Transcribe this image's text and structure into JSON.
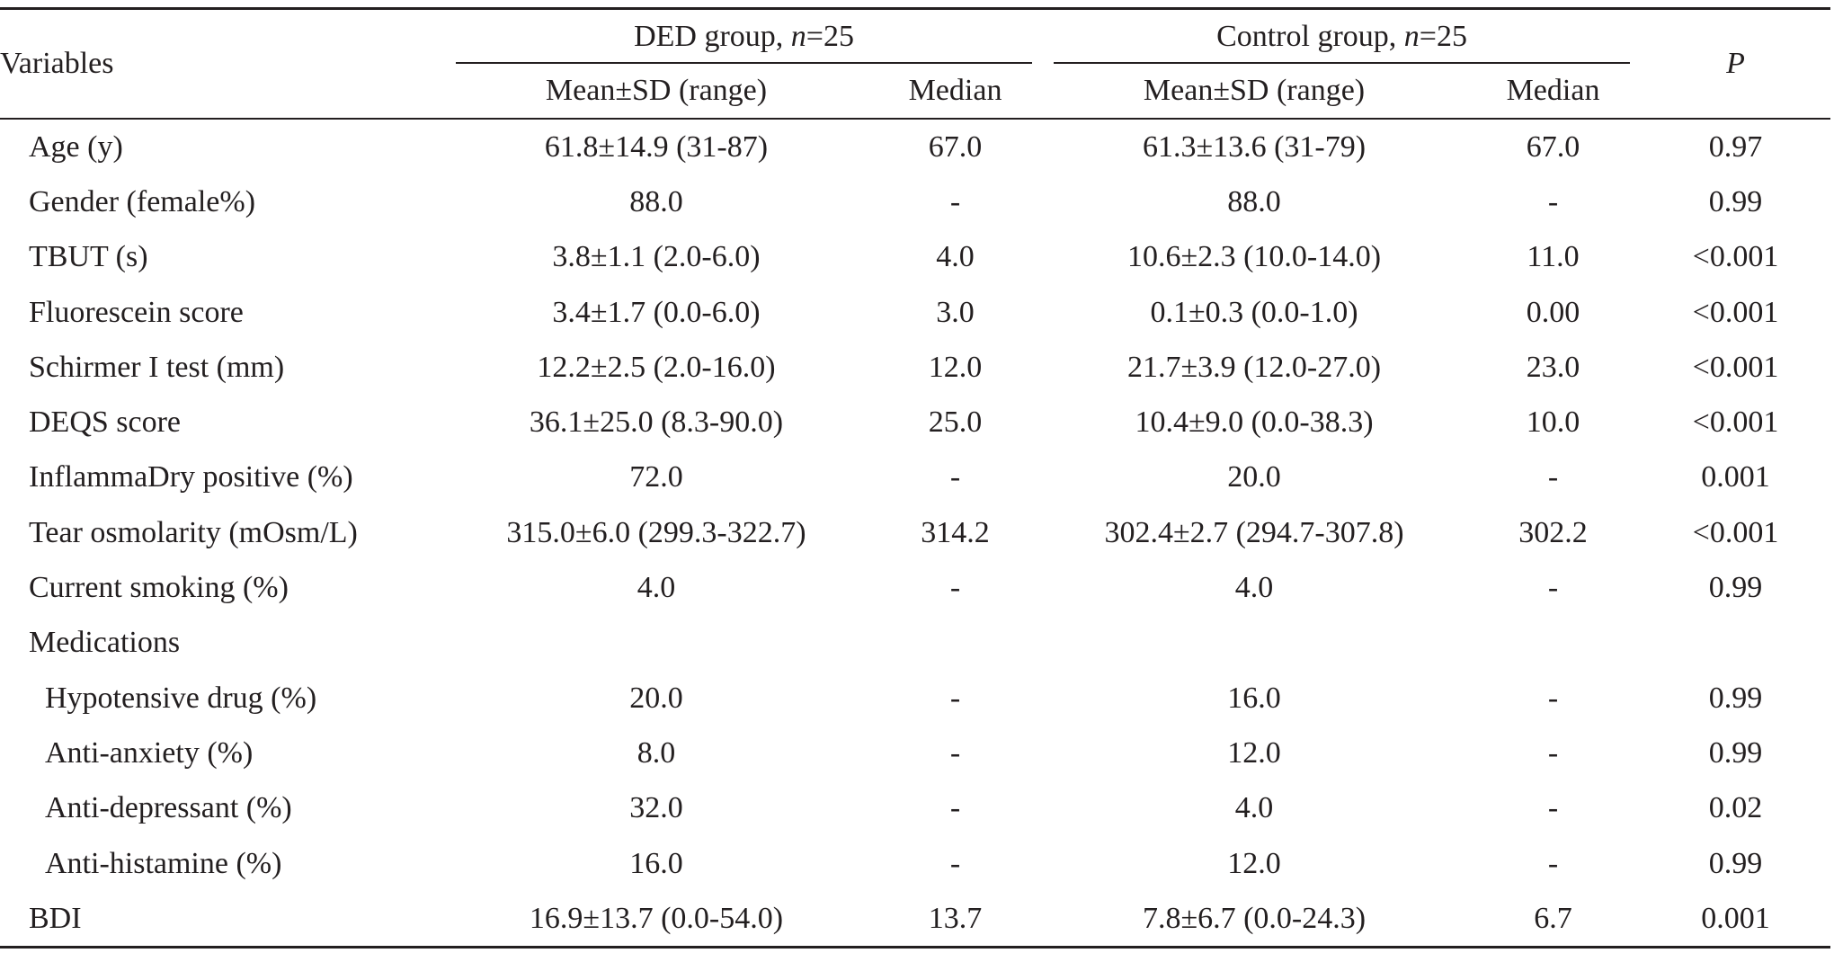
{
  "table": {
    "header": {
      "variables": "Variables",
      "ded_group_prefix": "DED group, ",
      "ded_group_n": "n",
      "ded_group_suffix": "=25",
      "control_group_prefix": "Control group, ",
      "control_group_n": "n",
      "control_group_suffix": "=25",
      "p": "P",
      "mean_sd_range": "Mean±SD (range)",
      "median": "Median"
    },
    "rows": [
      {
        "label": "Age (y)",
        "ded_mean": "61.8±14.9 (31-87)",
        "ded_median": "67.0",
        "ctl_mean": "61.3±13.6 (31-79)",
        "ctl_median": "67.0",
        "p": "0.97"
      },
      {
        "label": "Gender (female%)",
        "ded_mean": "88.0",
        "ded_median": "-",
        "ctl_mean": "88.0",
        "ctl_median": "-",
        "p": "0.99"
      },
      {
        "label": "TBUT (s)",
        "ded_mean": "3.8±1.1 (2.0-6.0)",
        "ded_median": "4.0",
        "ctl_mean": "10.6±2.3 (10.0-14.0)",
        "ctl_median": "11.0",
        "p": "<0.001"
      },
      {
        "label": "Fluorescein score",
        "ded_mean": "3.4±1.7 (0.0-6.0)",
        "ded_median": "3.0",
        "ctl_mean": "0.1±0.3 (0.0-1.0)",
        "ctl_median": "0.00",
        "p": "<0.001"
      },
      {
        "label": "Schirmer I test (mm)",
        "ded_mean": "12.2±2.5 (2.0-16.0)",
        "ded_median": "12.0",
        "ctl_mean": "21.7±3.9 (12.0-27.0)",
        "ctl_median": "23.0",
        "p": "<0.001"
      },
      {
        "label": "DEQS score",
        "ded_mean": "36.1±25.0 (8.3-90.0)",
        "ded_median": "25.0",
        "ctl_mean": "10.4±9.0 (0.0-38.3)",
        "ctl_median": "10.0",
        "p": "<0.001"
      },
      {
        "label": "InflammaDry positive (%)",
        "ded_mean": "72.0",
        "ded_median": "-",
        "ctl_mean": "20.0",
        "ctl_median": "-",
        "p": "0.001"
      },
      {
        "label": "Tear osmolarity (mOsm/L)",
        "ded_mean": "315.0±6.0 (299.3-322.7)",
        "ded_median": "314.2",
        "ctl_mean": "302.4±2.7 (294.7-307.8)",
        "ctl_median": "302.2",
        "p": "<0.001"
      },
      {
        "label": "Current smoking (%)",
        "ded_mean": "4.0",
        "ded_median": "-",
        "ctl_mean": "4.0",
        "ctl_median": "-",
        "p": "0.99"
      },
      {
        "label": "Medications",
        "ded_mean": "",
        "ded_median": "",
        "ctl_mean": "",
        "ctl_median": "",
        "p": ""
      },
      {
        "label": "Hypotensive drug (%)",
        "ded_mean": "20.0",
        "ded_median": "-",
        "ctl_mean": "16.0",
        "ctl_median": "-",
        "p": "0.99"
      },
      {
        "label": "Anti-anxiety (%)",
        "ded_mean": "8.0",
        "ded_median": "-",
        "ctl_mean": "12.0",
        "ctl_median": "-",
        "p": "0.99"
      },
      {
        "label": "Anti-depressant (%)",
        "ded_mean": "32.0",
        "ded_median": "-",
        "ctl_mean": "4.0",
        "ctl_median": "-",
        "p": "0.02"
      },
      {
        "label": "Anti-histamine (%)",
        "ded_mean": "16.0",
        "ded_median": "-",
        "ctl_mean": "12.0",
        "ctl_median": "-",
        "p": "0.99"
      },
      {
        "label": "BDI",
        "ded_mean": "16.9±13.7 (0.0-54.0)",
        "ded_median": "13.7",
        "ctl_mean": "7.8±6.7 (0.0-24.3)",
        "ctl_median": "6.7",
        "p": "0.001"
      }
    ]
  }
}
